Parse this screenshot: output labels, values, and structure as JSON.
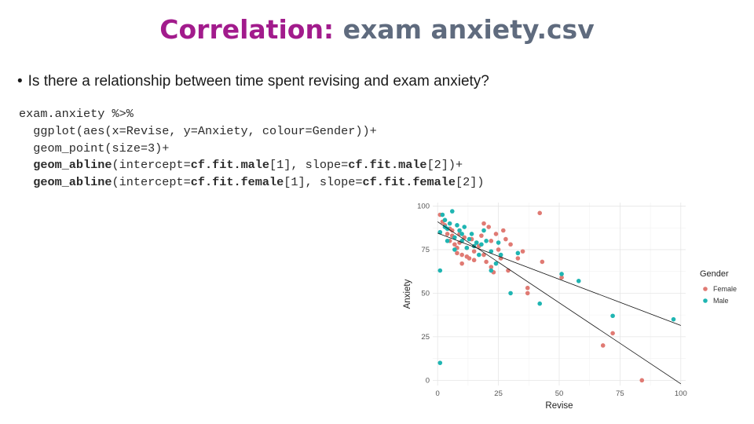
{
  "title": {
    "highlight": "Correlation:",
    "rest": "exam anxiety.csv"
  },
  "bullet": "Is there a relationship between time spent revising and exam anxiety?",
  "code_lines": [
    "exam.anxiety %>%",
    "  ggplot(aes(x=Revise, y=Anxiety, colour=Gender))+",
    "  geom_point(size=3)+",
    "  geom_abline(intercept=cf.fit.male[1], slope=cf.fit.male[2])+",
    "  geom_abline(intercept=cf.fit.female[1], slope=cf.fit.female[2])"
  ],
  "chart_data": {
    "type": "scatter",
    "xlabel": "Revise",
    "ylabel": "Anxiety",
    "xlim": [
      -2,
      102
    ],
    "ylim": [
      -3,
      102
    ],
    "xticks": [
      "0",
      "25",
      "50",
      "75",
      "100"
    ],
    "yticks": [
      "0",
      "25",
      "50",
      "75",
      "100"
    ],
    "legend": {
      "title": "Gender",
      "position": "right"
    },
    "colors": {
      "Female": "#e07a73",
      "Male": "#1fb5b2"
    },
    "series": [
      {
        "name": "Female",
        "points": [
          [
            1,
            95
          ],
          [
            2,
            91
          ],
          [
            3,
            89
          ],
          [
            4,
            84
          ],
          [
            5,
            87
          ],
          [
            5,
            80
          ],
          [
            6,
            86
          ],
          [
            6,
            83
          ],
          [
            7,
            78
          ],
          [
            8,
            76
          ],
          [
            8,
            73
          ],
          [
            9,
            84
          ],
          [
            9,
            79
          ],
          [
            10,
            72
          ],
          [
            10,
            67
          ],
          [
            11,
            82
          ],
          [
            12,
            71
          ],
          [
            12,
            76
          ],
          [
            13,
            70
          ],
          [
            14,
            81
          ],
          [
            15,
            74
          ],
          [
            15,
            69
          ],
          [
            16,
            79
          ],
          [
            17,
            77
          ],
          [
            18,
            83
          ],
          [
            19,
            90
          ],
          [
            19,
            72
          ],
          [
            20,
            68
          ],
          [
            21,
            88
          ],
          [
            22,
            80
          ],
          [
            22,
            65
          ],
          [
            23,
            62
          ],
          [
            24,
            84
          ],
          [
            25,
            75
          ],
          [
            26,
            70
          ],
          [
            27,
            86
          ],
          [
            28,
            81
          ],
          [
            29,
            63
          ],
          [
            30,
            78
          ],
          [
            33,
            70
          ],
          [
            35,
            74
          ],
          [
            37,
            53
          ],
          [
            37,
            50
          ],
          [
            42,
            96
          ],
          [
            43,
            68
          ],
          [
            51,
            59
          ],
          [
            68,
            20
          ],
          [
            72,
            27
          ],
          [
            84,
            0
          ]
        ]
      },
      {
        "name": "Male",
        "points": [
          [
            1,
            63
          ],
          [
            1,
            10
          ],
          [
            1,
            85
          ],
          [
            2,
            95
          ],
          [
            3,
            92
          ],
          [
            3,
            88
          ],
          [
            4,
            87
          ],
          [
            4,
            80
          ],
          [
            5,
            90
          ],
          [
            6,
            97
          ],
          [
            7,
            75
          ],
          [
            7,
            82
          ],
          [
            8,
            89
          ],
          [
            9,
            86
          ],
          [
            10,
            84
          ],
          [
            10,
            80
          ],
          [
            11,
            88
          ],
          [
            12,
            76
          ],
          [
            13,
            81
          ],
          [
            14,
            84
          ],
          [
            15,
            77
          ],
          [
            16,
            79
          ],
          [
            17,
            72
          ],
          [
            18,
            78
          ],
          [
            19,
            86
          ],
          [
            20,
            80
          ],
          [
            22,
            74
          ],
          [
            22,
            63
          ],
          [
            24,
            67
          ],
          [
            25,
            79
          ],
          [
            26,
            72
          ],
          [
            30,
            50
          ],
          [
            33,
            73
          ],
          [
            42,
            44
          ],
          [
            51,
            61
          ],
          [
            58,
            57
          ],
          [
            72,
            37
          ],
          [
            97,
            35
          ]
        ]
      }
    ],
    "fit_lines": [
      {
        "name": "male",
        "intercept": 84.5,
        "slope": -0.53
      },
      {
        "name": "female",
        "intercept": 91.0,
        "slope": -0.93
      }
    ]
  }
}
